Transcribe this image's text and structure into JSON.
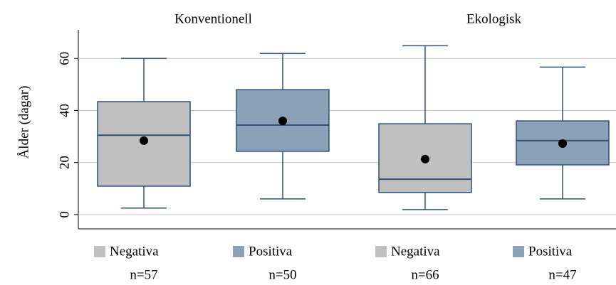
{
  "chart_data": {
    "type": "box",
    "ylabel": "Ålder (dagar)",
    "ylim": [
      -5.5,
      71
    ],
    "yticks": [
      0,
      20,
      40,
      60
    ],
    "grid": true,
    "groups": [
      {
        "label": "Konventionell",
        "boxes": [
          {
            "name": "Negativa",
            "color": "#c0c0c0",
            "n_label": "n=57",
            "min": 2.5,
            "q1": 10.9,
            "median": 30.5,
            "q3": 43.4,
            "max": 60,
            "mean": 28.4
          },
          {
            "name": "Positiva",
            "color": "#8ca0b8",
            "n_label": "n=50",
            "min": 6,
            "q1": 24.3,
            "median": 34.4,
            "q3": 48,
            "max": 61.9,
            "mean": 36
          }
        ]
      },
      {
        "label": "Ekologisk",
        "boxes": [
          {
            "name": "Negativa",
            "color": "#c0c0c0",
            "n_label": "n=66",
            "min": 1.9,
            "q1": 8.5,
            "median": 13.6,
            "q3": 34.9,
            "max": 64.9,
            "mean": 21.3
          },
          {
            "name": "Positiva",
            "color": "#8ca0b8",
            "n_label": "n=47",
            "min": 6,
            "q1": 19.1,
            "median": 28.4,
            "q3": 36,
            "max": 56.7,
            "mean": 27.3
          }
        ]
      }
    ]
  }
}
